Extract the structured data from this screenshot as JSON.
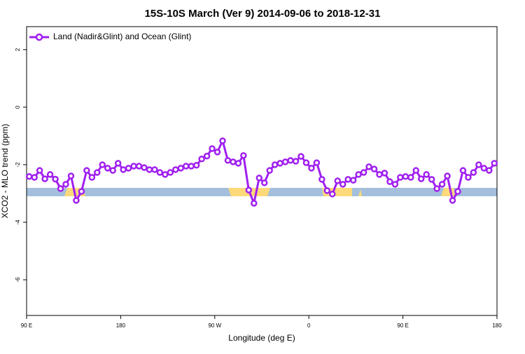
{
  "chart_data": {
    "type": "line",
    "title": "15S-10S March (Ver 9)   2014-09-06 to 2018-12-31",
    "x_label": "Longitude (deg E)",
    "y_label": "XCO2 - MLO trend (ppm)",
    "xlim": [
      90,
      540
    ],
    "ylim": [
      -7.24,
      2.8
    ],
    "xticks": [
      {
        "value": 90,
        "label": "90 E"
      },
      180,
      {
        "value": 270,
        "label": "90 W"
      },
      {
        "value": 360,
        "label": "0"
      },
      {
        "value": 450,
        "label": "90 E"
      },
      {
        "value": 540,
        "label": "180"
      }
    ],
    "yticks": [
      -6,
      -4,
      -2,
      0,
      2
    ],
    "legend": "top-left",
    "x": [
      92.5,
      97.5,
      102.5,
      107.5,
      112.5,
      117.5,
      122.5,
      127.5,
      132.5,
      137.5,
      142.5,
      147.5,
      152.5,
      157.5,
      162.5,
      167.5,
      172.5,
      177.5,
      182.5,
      187.5,
      192.5,
      197.5,
      202.5,
      207.5,
      212.5,
      217.5,
      222.5,
      227.5,
      232.5,
      237.5,
      242.5,
      247.5,
      252.5,
      257.5,
      262.5,
      267.5,
      272.5,
      277.5,
      282.5,
      287.5,
      292.5,
      297.5,
      302.5,
      307.5,
      312.5,
      317.5,
      322.5,
      327.5,
      332.5,
      337.5,
      342.5,
      347.5,
      352.5,
      357.5,
      362.5,
      367.5,
      372.5,
      377.5,
      382.5,
      387.5,
      392.5,
      397.5,
      402.5,
      407.5,
      412.5,
      417.5,
      422.5,
      427.5,
      432.5,
      437.5,
      442.5,
      447.5,
      452.5,
      457.5,
      462.5,
      467.5,
      472.5,
      477.5,
      482.5,
      487.5,
      492.5,
      497.5,
      502.5,
      507.5,
      512.5,
      517.5,
      522.5,
      527.5,
      532.5,
      537.5
    ],
    "series": [
      {
        "name": "Land (Nadir&Glint) and Ocean (Glint)",
        "color": "#a020f0",
        "values": [
          -2.41,
          -2.44,
          -2.2,
          -2.49,
          -2.34,
          -2.5,
          -2.83,
          -2.68,
          -2.39,
          -3.24,
          -2.93,
          -2.2,
          -2.44,
          -2.27,
          -2.0,
          -2.12,
          -2.2,
          -1.95,
          -2.17,
          -2.12,
          -2.05,
          -2.05,
          -2.1,
          -2.17,
          -2.17,
          -2.27,
          -2.34,
          -2.27,
          -2.17,
          -2.12,
          -2.05,
          -2.05,
          -2.02,
          -1.8,
          -1.7,
          -1.44,
          -1.56,
          -1.17,
          -1.85,
          -1.9,
          -1.95,
          -1.68,
          -2.88,
          -3.34,
          -2.46,
          -2.63,
          -2.2,
          -2.0,
          -1.95,
          -1.9,
          -1.85,
          -1.88,
          -1.71,
          -1.93,
          -2.12,
          -1.93,
          -2.51,
          -2.9,
          -3.02,
          -2.56,
          -2.68,
          -2.51,
          -2.54,
          -2.34,
          -2.27,
          -2.07,
          -2.15,
          -2.34,
          -2.29,
          -2.59,
          -2.68,
          -2.44,
          -2.41,
          -2.44,
          -2.2,
          -2.49,
          -2.34,
          -2.51,
          -2.83,
          -2.68,
          -2.39,
          -3.24,
          -2.93,
          -2.2,
          -2.44,
          -2.27,
          -2.0,
          -2.12,
          -2.2,
          -1.95
        ]
      }
    ]
  }
}
